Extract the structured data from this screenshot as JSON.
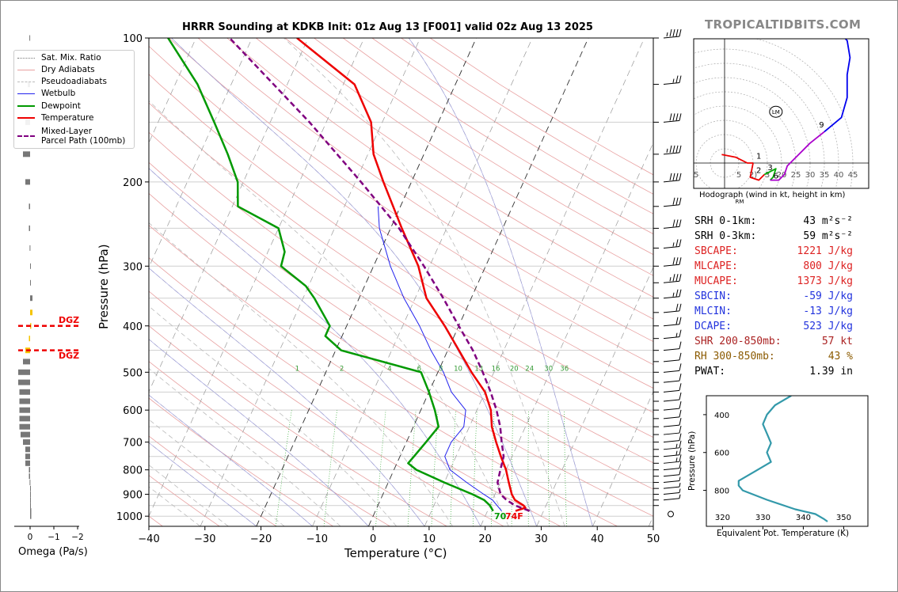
{
  "title": "HRRR Sounding at KDKB Init: 01z Aug 13 [F001] valid 02z Aug 13 2025",
  "brand": "TROPICALTIDBITS.COM",
  "legend": [
    {
      "label": "Sat. Mix. Ratio",
      "color": "#777777",
      "style": "dotted"
    },
    {
      "label": "Dry Adiabats",
      "color": "#e8a0a0",
      "style": "solid"
    },
    {
      "label": "Pseudoadiabats",
      "color": "#bbbbbb",
      "style": "dashed"
    },
    {
      "label": "Wetbulb",
      "color": "#2222ee",
      "style": "solid"
    },
    {
      "label": "Dewpoint",
      "color": "#009900",
      "style": "solid"
    },
    {
      "label": "Temperature",
      "color": "#ee0000",
      "style": "solid"
    },
    {
      "label": "Mixed-Layer\nParcel Path (100mb)",
      "color": "#800080",
      "style": "dashed"
    }
  ],
  "parameters": [
    {
      "key": "SRH 0-1km:",
      "value": "43",
      "unit": "m²s⁻²",
      "color": "#000000"
    },
    {
      "key": "SRH 0-3km:",
      "value": "59",
      "unit": "m²s⁻²",
      "color": "#000000"
    },
    {
      "key": "SBCAPE:",
      "value": "1221 J/kg",
      "unit": "",
      "color": "#dd2222"
    },
    {
      "key": "MLCAPE:",
      "value": "800 J/kg",
      "unit": "",
      "color": "#dd2222"
    },
    {
      "key": "MUCAPE:",
      "value": "1373 J/kg",
      "unit": "",
      "color": "#dd2222"
    },
    {
      "key": "SBCIN:",
      "value": "-59 J/kg",
      "unit": "",
      "color": "#2233dd"
    },
    {
      "key": "MLCIN:",
      "value": "-13 J/kg",
      "unit": "",
      "color": "#2233dd"
    },
    {
      "key": "DCAPE:",
      "value": "523 J/kg",
      "unit": "",
      "color": "#2233dd"
    },
    {
      "key": "SHR 200-850mb:",
      "value": "57 kt",
      "unit": "",
      "color": "#aa2222"
    },
    {
      "key": "RH 300-850mb:",
      "value": "43 %",
      "unit": "",
      "color": "#8b5a00"
    },
    {
      "key": "PWAT:",
      "value": "1.39 in",
      "unit": "",
      "color": "#000000"
    }
  ],
  "surface": {
    "temp_label": "74F",
    "dew_label": "70"
  },
  "dgz_label": "DGZ",
  "omega_label": "Omega (Pa/s)",
  "hodo_caption": "Hodograph (wind in kt, height in km)",
  "theta_xlabel": "Equivalent Pot. Temperature (K)",
  "theta_ylabel": "Pressure (hPa)",
  "chart_data": [
    {
      "type": "line",
      "name": "skew-t",
      "title": "HRRR Sounding at KDKB Init: 01z Aug 13 [F001] valid 02z Aug 13 2025",
      "xlabel": "Temperature (°C)",
      "ylabel": "Pressure (hPa)",
      "xlim": [
        -40,
        50
      ],
      "ylim": [
        1050,
        100
      ],
      "y_scale": "log",
      "xticks": [
        -40,
        -30,
        -20,
        -10,
        0,
        10,
        20,
        30,
        40,
        50
      ],
      "yticks": [
        100,
        200,
        300,
        400,
        500,
        600,
        700,
        800,
        900,
        1000
      ],
      "mixing_ratio_labels": [
        "1",
        "2",
        "4",
        "6",
        "8",
        "10",
        "13",
        "16",
        "20",
        "24",
        "30",
        "36"
      ],
      "series": [
        {
          "name": "Temperature",
          "color": "#ee0000",
          "points": [
            [
              975,
              25
            ],
            [
              960,
              26.5
            ],
            [
              950,
              26
            ],
            [
              925,
              24
            ],
            [
              900,
              23
            ],
            [
              850,
              21.5
            ],
            [
              800,
              20
            ],
            [
              750,
              18
            ],
            [
              700,
              16
            ],
            [
              650,
              14
            ],
            [
              600,
              12.5
            ],
            [
              550,
              10
            ],
            [
              500,
              6
            ],
            [
              450,
              2
            ],
            [
              400,
              -2.5
            ],
            [
              350,
              -8
            ],
            [
              300,
              -12
            ],
            [
              250,
              -18
            ],
            [
              200,
              -25
            ],
            [
              175,
              -29
            ],
            [
              150,
              -32
            ],
            [
              125,
              -38
            ],
            [
              100,
              -52
            ]
          ]
        },
        {
          "name": "Dewpoint",
          "color": "#009900",
          "points": [
            [
              975,
              21
            ],
            [
              950,
              20
            ],
            [
              925,
              18.5
            ],
            [
              900,
              16
            ],
            [
              850,
              10
            ],
            [
              800,
              4
            ],
            [
              775,
              2
            ],
            [
              750,
              2.5
            ],
            [
              700,
              3.5
            ],
            [
              650,
              4.5
            ],
            [
              600,
              2.5
            ],
            [
              550,
              0
            ],
            [
              500,
              -3
            ],
            [
              450,
              -19
            ],
            [
              420,
              -23
            ],
            [
              400,
              -23
            ],
            [
              350,
              -28
            ],
            [
              330,
              -30.5
            ],
            [
              300,
              -36.5
            ],
            [
              280,
              -37
            ],
            [
              250,
              -40
            ],
            [
              225,
              -49
            ],
            [
              200,
              -51
            ],
            [
              175,
              -55
            ],
            [
              150,
              -60
            ],
            [
              125,
              -66
            ],
            [
              100,
              -75
            ]
          ]
        },
        {
          "name": "Wetbulb",
          "color": "#2222ee",
          "points": [
            [
              975,
              22.5
            ],
            [
              925,
              20
            ],
            [
              900,
              18
            ],
            [
              850,
              14
            ],
            [
              800,
              10
            ],
            [
              750,
              8
            ],
            [
              700,
              8
            ],
            [
              650,
              9
            ],
            [
              600,
              8
            ],
            [
              550,
              4
            ],
            [
              500,
              1
            ],
            [
              450,
              -3
            ],
            [
              400,
              -7
            ],
            [
              350,
              -12
            ],
            [
              300,
              -17
            ],
            [
              250,
              -22
            ],
            [
              225,
              -24
            ]
          ]
        },
        {
          "name": "Mixed-Layer Parcel Path (100mb)",
          "color": "#800080",
          "points": [
            [
              975,
              27.5
            ],
            [
              950,
              24.5
            ],
            [
              925,
              22.5
            ],
            [
              900,
              21
            ],
            [
              850,
              19.5
            ],
            [
              800,
              19
            ],
            [
              750,
              18.5
            ],
            [
              700,
              17
            ],
            [
              650,
              15.5
            ],
            [
              600,
              13.5
            ],
            [
              550,
              11
            ],
            [
              500,
              8
            ],
            [
              450,
              4.5
            ],
            [
              400,
              0
            ],
            [
              350,
              -5
            ],
            [
              300,
              -11
            ],
            [
              250,
              -18.5
            ],
            [
              200,
              -29
            ],
            [
              150,
              -43
            ],
            [
              100,
              -64
            ]
          ]
        }
      ]
    },
    {
      "type": "line",
      "name": "hodograph",
      "title": "Hodograph (wind in kt, height in km)",
      "rings": [
        5,
        10,
        15,
        20,
        25,
        30,
        35,
        40,
        45
      ],
      "ring_labels": [
        "5",
        "5",
        "2)",
        "3",
        "20",
        "25",
        "30",
        "35",
        "40",
        "45"
      ],
      "height_labels": [
        {
          "label": "1",
          "u": 10,
          "v": 1
        },
        {
          "label": "2",
          "u": 10,
          "v": -4
        },
        {
          "label": "3",
          "u": 14,
          "v": -3
        },
        {
          "label": "6",
          "u": 16,
          "v": -6
        },
        {
          "label": "9",
          "u": 32,
          "v": 12
        }
      ],
      "storm_motion_labels": [
        "LM",
        "RM"
      ],
      "lm_point": [
        18,
        18
      ],
      "series": [
        {
          "name": "0-1 km",
          "color": "#ee0000",
          "points": [
            [
              -1,
              3
            ],
            [
              4,
              2
            ],
            [
              8,
              0
            ],
            [
              10,
              0
            ]
          ]
        },
        {
          "name": "1-3 km",
          "color": "#ee0000",
          "points": [
            [
              10,
              0
            ],
            [
              9,
              -5
            ],
            [
              12,
              -6
            ],
            [
              14,
              -4
            ]
          ]
        },
        {
          "name": "3-6 km",
          "color": "#00aa00",
          "points": [
            [
              14,
              -4
            ],
            [
              16,
              -3
            ],
            [
              18,
              -2
            ],
            [
              17,
              -5
            ],
            [
              16,
              -6
            ]
          ]
        },
        {
          "name": "6-9 km",
          "color": "#aa00cc",
          "points": [
            [
              16,
              -6
            ],
            [
              19,
              -6
            ],
            [
              21,
              -4
            ],
            [
              22,
              -1
            ],
            [
              26,
              3
            ],
            [
              30,
              7
            ],
            [
              35,
              11
            ]
          ]
        },
        {
          "name": "9+ km",
          "color": "#0000ee",
          "points": [
            [
              35,
              11
            ],
            [
              41,
              16
            ],
            [
              43,
              23
            ],
            [
              43,
              31
            ],
            [
              44,
              37
            ],
            [
              43,
              43
            ],
            [
              40,
              46
            ]
          ]
        }
      ]
    },
    {
      "type": "line",
      "name": "theta-e",
      "xlabel": "Equivalent Pot. Temperature (K)",
      "ylabel": "Pressure (hPa)",
      "xlim": [
        316,
        356
      ],
      "ylim": [
        990,
        300
      ],
      "xticks": [
        320,
        330,
        340,
        350
      ],
      "yticks": [
        400,
        600,
        800
      ],
      "series": [
        {
          "name": "Theta-E",
          "color": "#3399aa",
          "points": [
            [
              300,
              337
            ],
            [
              350,
              333
            ],
            [
              400,
              331
            ],
            [
              450,
              330
            ],
            [
              500,
              331
            ],
            [
              550,
              332
            ],
            [
              600,
              331
            ],
            [
              650,
              332
            ],
            [
              700,
              328
            ],
            [
              750,
              324
            ],
            [
              775,
              324
            ],
            [
              800,
              325
            ],
            [
              850,
              331
            ],
            [
              900,
              338
            ],
            [
              925,
              343
            ],
            [
              950,
              345
            ],
            [
              965,
              346
            ]
          ]
        }
      ]
    },
    {
      "type": "bar",
      "name": "omega",
      "xlabel": "Omega (Pa/s)",
      "xticks": [
        "0",
        "−1",
        "−2"
      ],
      "dgz_levels": [
        400,
        450
      ],
      "series": [
        {
          "name": "Omega",
          "color": "#777777",
          "points": [
            [
              1000,
              -0.05
            ],
            [
              975,
              -0.05
            ],
            [
              950,
              -0.03
            ],
            [
              925,
              -0.02
            ],
            [
              900,
              -0.02
            ],
            [
              875,
              -0.01
            ],
            [
              850,
              0.02
            ],
            [
              825,
              0.05
            ],
            [
              800,
              0.05
            ],
            [
              775,
              0.2
            ],
            [
              750,
              0.2
            ],
            [
              725,
              0.2
            ],
            [
              700,
              0.3
            ],
            [
              675,
              0.4
            ],
            [
              650,
              0.45
            ],
            [
              625,
              0.45
            ],
            [
              600,
              0.45
            ],
            [
              575,
              0.45
            ],
            [
              550,
              0.45
            ],
            [
              525,
              0.5
            ],
            [
              500,
              0.5
            ],
            [
              475,
              0.3
            ],
            [
              450,
              0.2
            ],
            [
              425,
              0.05
            ],
            [
              400,
              -0.05
            ],
            [
              375,
              -0.1
            ],
            [
              350,
              -0.1
            ],
            [
              325,
              -0.02
            ],
            [
              300,
              -0.02
            ],
            [
              275,
              0.02
            ],
            [
              250,
              0.05
            ],
            [
              225,
              0.05
            ],
            [
              200,
              0.2
            ],
            [
              175,
              0.3
            ],
            [
              150,
              0.2
            ],
            [
              125,
              0.1
            ],
            [
              100,
              0.03
            ]
          ]
        }
      ]
    }
  ]
}
